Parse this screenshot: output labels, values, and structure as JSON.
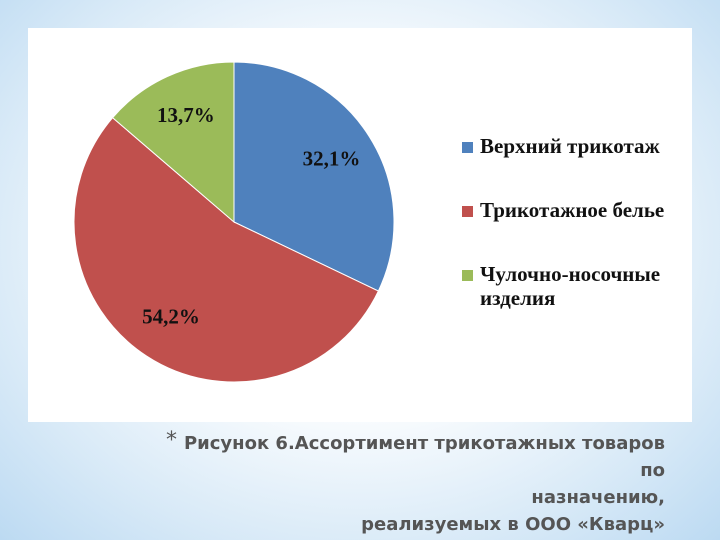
{
  "chart_data": {
    "type": "pie",
    "categories": [
      "Верхний трикотаж",
      "Трикотажное белье",
      "Чулочно-носочные изделия"
    ],
    "values": [
      32.1,
      54.2,
      13.7
    ],
    "value_labels": [
      "32,1%",
      "54,2%",
      "13,7%"
    ],
    "colors": [
      "#4f81bd",
      "#c0504d",
      "#9bbb59"
    ],
    "legend": "right"
  },
  "caption": {
    "bullet": "*",
    "lines": [
      "Рисунок 6.Ассортимент трикотажных товаров по",
      "назначению,",
      "реализуемых в ООО «Кварц»"
    ]
  }
}
